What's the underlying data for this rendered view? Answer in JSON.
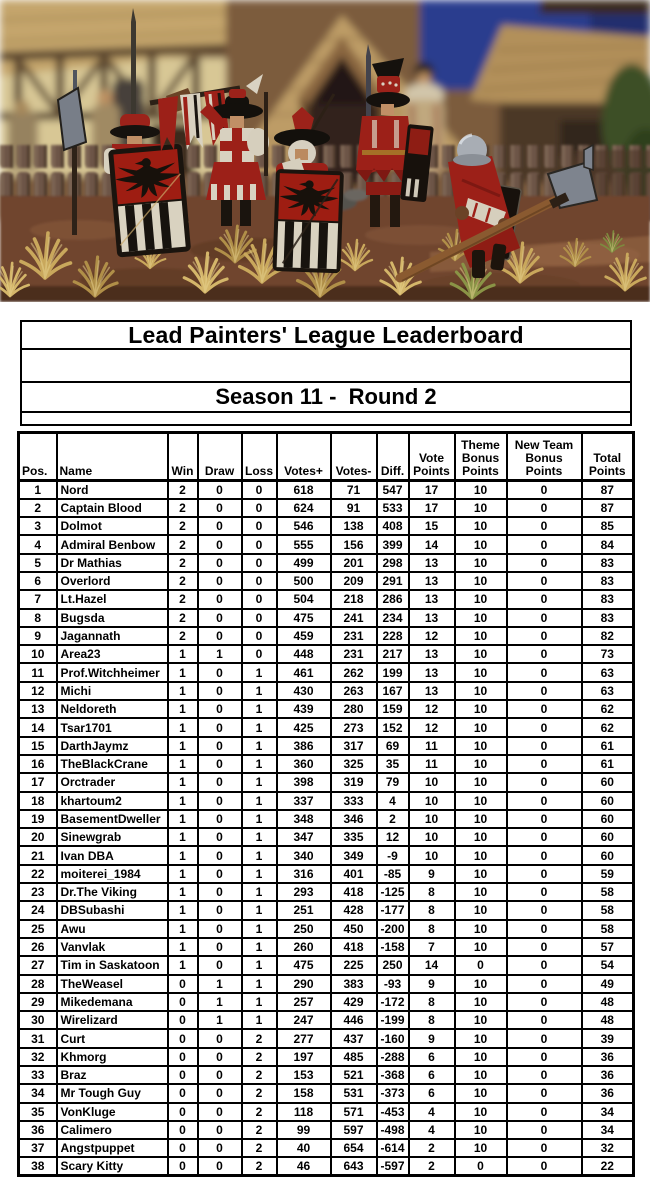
{
  "photo": {
    "description": "Painted miniature medieval soldiers in red livery carrying black-and-white striped pavise shields with black eagle emblems, posed before a thatched village building and wooden fence with dry grass tufts"
  },
  "colors": {
    "table_border": "#000000",
    "page_background": "#ffffff",
    "livery_red": "#9c2018"
  },
  "header": {
    "title": "Lead Painters' League Leaderboard",
    "season": "Season 11 -  Round 2"
  },
  "table": {
    "columns": [
      "Pos.",
      "Name",
      "Win",
      "Draw",
      "Loss",
      "Votes+",
      "Votes-",
      "Diff.",
      "Vote Points",
      "Theme Bonus Points",
      "New Team Bonus Points",
      "Total Points"
    ],
    "rows": [
      [
        1,
        "Nord",
        2,
        0,
        0,
        618,
        71,
        547,
        17,
        10,
        0,
        87
      ],
      [
        2,
        "Captain Blood",
        2,
        0,
        0,
        624,
        91,
        533,
        17,
        10,
        0,
        87
      ],
      [
        3,
        "Dolmot",
        2,
        0,
        0,
        546,
        138,
        408,
        15,
        10,
        0,
        85
      ],
      [
        4,
        "Admiral Benbow",
        2,
        0,
        0,
        555,
        156,
        399,
        14,
        10,
        0,
        84
      ],
      [
        5,
        "Dr Mathias",
        2,
        0,
        0,
        499,
        201,
        298,
        13,
        10,
        0,
        83
      ],
      [
        6,
        "Overlord",
        2,
        0,
        0,
        500,
        209,
        291,
        13,
        10,
        0,
        83
      ],
      [
        7,
        "Lt.Hazel",
        2,
        0,
        0,
        504,
        218,
        286,
        13,
        10,
        0,
        83
      ],
      [
        8,
        "Bugsda",
        2,
        0,
        0,
        475,
        241,
        234,
        13,
        10,
        0,
        83
      ],
      [
        9,
        "Jagannath",
        2,
        0,
        0,
        459,
        231,
        228,
        12,
        10,
        0,
        82
      ],
      [
        10,
        "Area23",
        1,
        1,
        0,
        448,
        231,
        217,
        13,
        10,
        0,
        73
      ],
      [
        11,
        "Prof.Witchheimer",
        1,
        0,
        1,
        461,
        262,
        199,
        13,
        10,
        0,
        63
      ],
      [
        12,
        "Michi",
        1,
        0,
        1,
        430,
        263,
        167,
        13,
        10,
        0,
        63
      ],
      [
        13,
        "Neldoreth",
        1,
        0,
        1,
        439,
        280,
        159,
        12,
        10,
        0,
        62
      ],
      [
        14,
        "Tsar1701",
        1,
        0,
        1,
        425,
        273,
        152,
        12,
        10,
        0,
        62
      ],
      [
        15,
        "DarthJaymz",
        1,
        0,
        1,
        386,
        317,
        69,
        11,
        10,
        0,
        61
      ],
      [
        16,
        "TheBlackCrane",
        1,
        0,
        1,
        360,
        325,
        35,
        11,
        10,
        0,
        61
      ],
      [
        17,
        "Orctrader",
        1,
        0,
        1,
        398,
        319,
        79,
        10,
        10,
        0,
        60
      ],
      [
        18,
        "khartoum2",
        1,
        0,
        1,
        337,
        333,
        4,
        10,
        10,
        0,
        60
      ],
      [
        19,
        "BasementDweller",
        1,
        0,
        1,
        348,
        346,
        2,
        10,
        10,
        0,
        60
      ],
      [
        20,
        "Sinewgrab",
        1,
        0,
        1,
        347,
        335,
        12,
        10,
        10,
        0,
        60
      ],
      [
        21,
        "Ivan DBA",
        1,
        0,
        1,
        340,
        349,
        -9,
        10,
        10,
        0,
        60
      ],
      [
        22,
        "moiterei_1984",
        1,
        0,
        1,
        316,
        401,
        -85,
        9,
        10,
        0,
        59
      ],
      [
        23,
        "Dr.The Viking",
        1,
        0,
        1,
        293,
        418,
        -125,
        8,
        10,
        0,
        58
      ],
      [
        24,
        "DBSubashi",
        1,
        0,
        1,
        251,
        428,
        -177,
        8,
        10,
        0,
        58
      ],
      [
        25,
        "Awu",
        1,
        0,
        1,
        250,
        450,
        -200,
        8,
        10,
        0,
        58
      ],
      [
        26,
        "Vanvlak",
        1,
        0,
        1,
        260,
        418,
        -158,
        7,
        10,
        0,
        57
      ],
      [
        27,
        "Tim in Saskatoon",
        1,
        0,
        1,
        475,
        225,
        250,
        14,
        0,
        0,
        54
      ],
      [
        28,
        "TheWeasel",
        0,
        1,
        1,
        290,
        383,
        -93,
        9,
        10,
        0,
        49
      ],
      [
        29,
        "Mikedemana",
        0,
        1,
        1,
        257,
        429,
        -172,
        8,
        10,
        0,
        48
      ],
      [
        30,
        "Wirelizard",
        0,
        1,
        1,
        247,
        446,
        -199,
        8,
        10,
        0,
        48
      ],
      [
        31,
        "Curt",
        0,
        0,
        2,
        277,
        437,
        -160,
        9,
        10,
        0,
        39
      ],
      [
        32,
        "Khmorg",
        0,
        0,
        2,
        197,
        485,
        -288,
        6,
        10,
        0,
        36
      ],
      [
        33,
        "Braz",
        0,
        0,
        2,
        153,
        521,
        -368,
        6,
        10,
        0,
        36
      ],
      [
        34,
        "Mr Tough Guy",
        0,
        0,
        2,
        158,
        531,
        -373,
        6,
        10,
        0,
        36
      ],
      [
        35,
        "VonKluge",
        0,
        0,
        2,
        118,
        571,
        -453,
        4,
        10,
        0,
        34
      ],
      [
        36,
        "Calimero",
        0,
        0,
        2,
        99,
        597,
        -498,
        4,
        10,
        0,
        34
      ],
      [
        37,
        "Angstpuppet",
        0,
        0,
        2,
        40,
        654,
        -614,
        2,
        10,
        0,
        32
      ],
      [
        38,
        "Scary Kitty",
        0,
        0,
        2,
        46,
        643,
        -597,
        2,
        0,
        0,
        22
      ]
    ]
  }
}
